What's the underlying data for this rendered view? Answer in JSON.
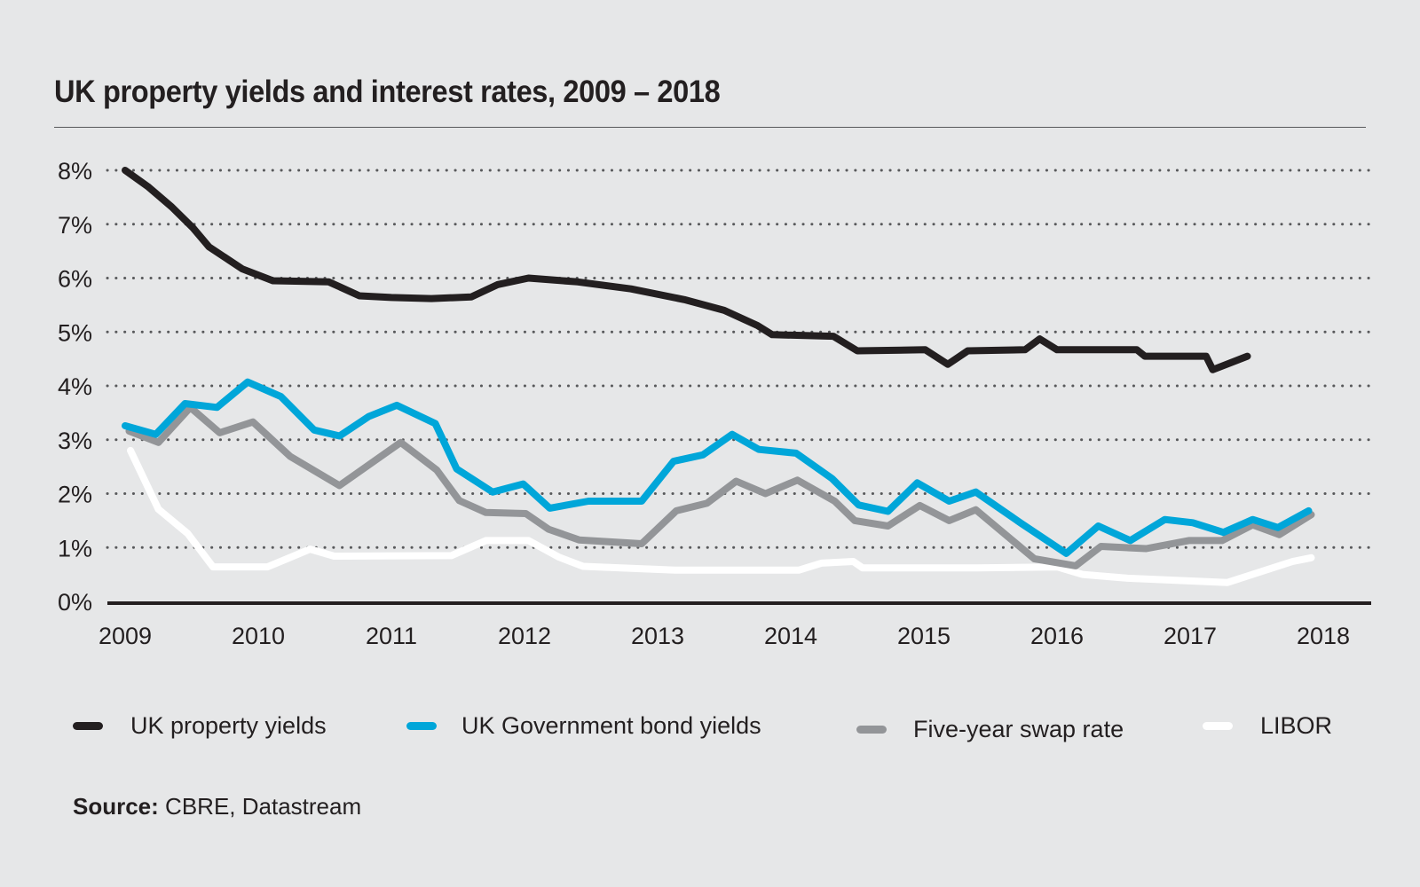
{
  "chart_data": {
    "type": "line",
    "title": "UK property yields and interest rates, 2009 – 2018",
    "xlabel": "",
    "ylabel": "",
    "x_ticks": [
      "2009",
      "2010",
      "2011",
      "2012",
      "2013",
      "2014",
      "2015",
      "2016",
      "2017",
      "2018"
    ],
    "y_ticks": [
      "0%",
      "1%",
      "2%",
      "3%",
      "4%",
      "5%",
      "6%",
      "7%",
      "8%"
    ],
    "xlim": [
      2009,
      2018
    ],
    "ylim": [
      0,
      8
    ],
    "grid": "horizontal dotted",
    "legend_position": "bottom",
    "series": [
      {
        "name": "UK property yields",
        "color": "#231f20",
        "points": [
          [
            2009.0,
            8.0
          ],
          [
            2009.17,
            7.7
          ],
          [
            2009.35,
            7.32
          ],
          [
            2009.51,
            6.93
          ],
          [
            2009.63,
            6.58
          ],
          [
            2009.88,
            6.17
          ],
          [
            2010.11,
            5.95
          ],
          [
            2010.53,
            5.93
          ],
          [
            2010.76,
            5.67
          ],
          [
            2011.0,
            5.64
          ],
          [
            2011.3,
            5.62
          ],
          [
            2011.6,
            5.65
          ],
          [
            2011.8,
            5.88
          ],
          [
            2012.03,
            6.0
          ],
          [
            2012.4,
            5.93
          ],
          [
            2012.8,
            5.8
          ],
          [
            2013.2,
            5.6
          ],
          [
            2013.5,
            5.4
          ],
          [
            2013.75,
            5.12
          ],
          [
            2013.86,
            4.95
          ],
          [
            2014.32,
            4.92
          ],
          [
            2014.5,
            4.65
          ],
          [
            2015.01,
            4.67
          ],
          [
            2015.18,
            4.4
          ],
          [
            2015.33,
            4.65
          ],
          [
            2015.76,
            4.67
          ],
          [
            2015.87,
            4.87
          ],
          [
            2016.0,
            4.67
          ],
          [
            2016.6,
            4.67
          ],
          [
            2016.66,
            4.55
          ],
          [
            2017.12,
            4.55
          ],
          [
            2017.17,
            4.3
          ],
          [
            2017.43,
            4.55
          ]
        ]
      },
      {
        "name": "UK Government bond yields",
        "color": "#00a6d9",
        "points": [
          [
            2009.0,
            3.26
          ],
          [
            2009.23,
            3.1
          ],
          [
            2009.45,
            3.67
          ],
          [
            2009.69,
            3.6
          ],
          [
            2009.92,
            4.07
          ],
          [
            2010.17,
            3.8
          ],
          [
            2010.42,
            3.18
          ],
          [
            2010.61,
            3.07
          ],
          [
            2010.83,
            3.43
          ],
          [
            2011.04,
            3.64
          ],
          [
            2011.33,
            3.3
          ],
          [
            2011.49,
            2.46
          ],
          [
            2011.76,
            2.03
          ],
          [
            2011.99,
            2.18
          ],
          [
            2012.19,
            1.73
          ],
          [
            2012.48,
            1.86
          ],
          [
            2012.88,
            1.86
          ],
          [
            2013.12,
            2.6
          ],
          [
            2013.34,
            2.72
          ],
          [
            2013.56,
            3.1
          ],
          [
            2013.76,
            2.82
          ],
          [
            2014.04,
            2.75
          ],
          [
            2014.31,
            2.28
          ],
          [
            2014.51,
            1.79
          ],
          [
            2014.73,
            1.67
          ],
          [
            2014.95,
            2.2
          ],
          [
            2015.19,
            1.86
          ],
          [
            2015.39,
            2.03
          ],
          [
            2015.73,
            1.45
          ],
          [
            2016.07,
            0.89
          ],
          [
            2016.31,
            1.4
          ],
          [
            2016.55,
            1.13
          ],
          [
            2016.81,
            1.52
          ],
          [
            2017.02,
            1.46
          ],
          [
            2017.25,
            1.28
          ],
          [
            2017.47,
            1.52
          ],
          [
            2017.66,
            1.37
          ],
          [
            2017.89,
            1.68
          ]
        ]
      },
      {
        "name": "Five-year swap rate",
        "color": "#939598",
        "points": [
          [
            2009.03,
            3.16
          ],
          [
            2009.25,
            2.95
          ],
          [
            2009.49,
            3.6
          ],
          [
            2009.71,
            3.13
          ],
          [
            2009.96,
            3.33
          ],
          [
            2010.24,
            2.69
          ],
          [
            2010.61,
            2.15
          ],
          [
            2011.07,
            2.95
          ],
          [
            2011.34,
            2.44
          ],
          [
            2011.51,
            1.87
          ],
          [
            2011.71,
            1.65
          ],
          [
            2012.01,
            1.63
          ],
          [
            2012.18,
            1.34
          ],
          [
            2012.41,
            1.14
          ],
          [
            2012.88,
            1.07
          ],
          [
            2013.14,
            1.68
          ],
          [
            2013.37,
            1.82
          ],
          [
            2013.59,
            2.23
          ],
          [
            2013.81,
            2.0
          ],
          [
            2014.05,
            2.25
          ],
          [
            2014.33,
            1.86
          ],
          [
            2014.48,
            1.5
          ],
          [
            2014.73,
            1.4
          ],
          [
            2014.97,
            1.78
          ],
          [
            2015.19,
            1.5
          ],
          [
            2015.39,
            1.7
          ],
          [
            2015.83,
            0.79
          ],
          [
            2016.14,
            0.66
          ],
          [
            2016.33,
            1.02
          ],
          [
            2016.67,
            0.98
          ],
          [
            2016.99,
            1.13
          ],
          [
            2017.24,
            1.13
          ],
          [
            2017.47,
            1.42
          ],
          [
            2017.67,
            1.24
          ],
          [
            2017.91,
            1.61
          ]
        ]
      },
      {
        "name": "LIBOR",
        "color": "#ffffff",
        "points": [
          [
            2009.04,
            2.8
          ],
          [
            2009.25,
            1.71
          ],
          [
            2009.47,
            1.26
          ],
          [
            2009.66,
            0.64
          ],
          [
            2010.07,
            0.64
          ],
          [
            2010.39,
            0.97
          ],
          [
            2010.57,
            0.84
          ],
          [
            2011.45,
            0.85
          ],
          [
            2011.71,
            1.13
          ],
          [
            2012.03,
            1.13
          ],
          [
            2012.26,
            0.82
          ],
          [
            2012.44,
            0.65
          ],
          [
            2013.13,
            0.58
          ],
          [
            2014.06,
            0.58
          ],
          [
            2014.23,
            0.71
          ],
          [
            2014.47,
            0.74
          ],
          [
            2014.54,
            0.62
          ],
          [
            2015.4,
            0.62
          ],
          [
            2016.0,
            0.64
          ],
          [
            2016.19,
            0.5
          ],
          [
            2016.53,
            0.43
          ],
          [
            2017.28,
            0.35
          ],
          [
            2017.77,
            0.74
          ],
          [
            2017.91,
            0.81
          ]
        ]
      }
    ]
  },
  "source": {
    "label": "Source:",
    "text": "CBRE, Datastream"
  }
}
